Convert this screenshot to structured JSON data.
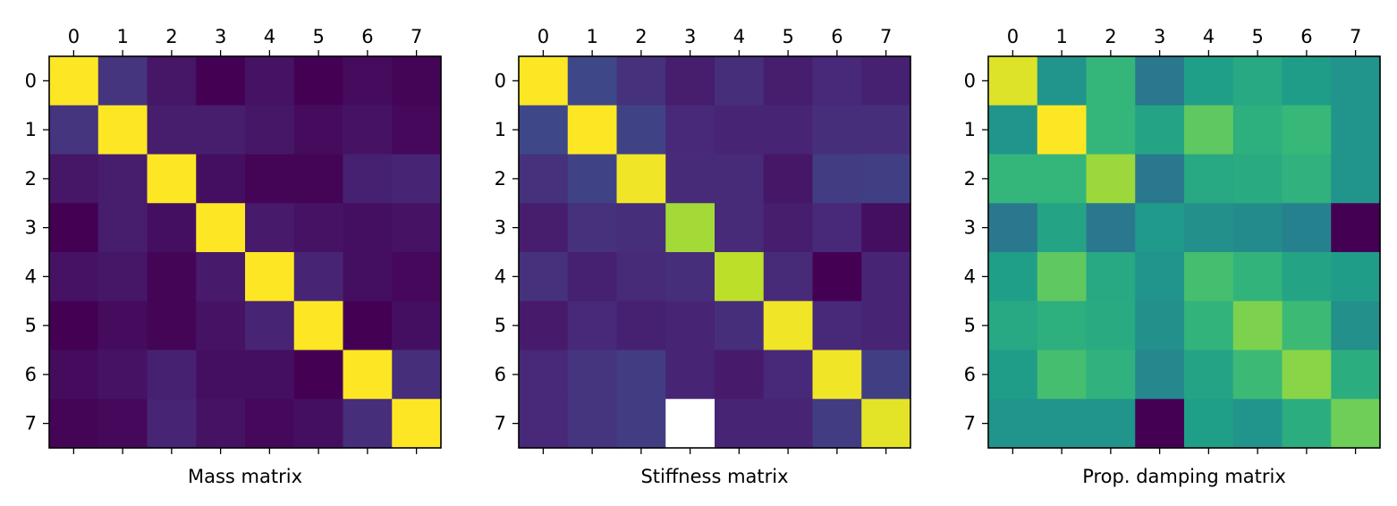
{
  "chart_data": [
    {
      "type": "heatmap",
      "title": "",
      "xlabel": "Mass matrix",
      "ylabel": "",
      "x_ticks": [
        "0",
        "1",
        "2",
        "3",
        "4",
        "5",
        "6",
        "7"
      ],
      "y_ticks": [
        "0",
        "1",
        "2",
        "3",
        "4",
        "5",
        "6",
        "7"
      ],
      "colormap": "viridis",
      "grid": false,
      "values": [
        [
          1.0,
          0.15,
          0.06,
          0.0,
          0.05,
          0.0,
          0.03,
          0.01
        ],
        [
          0.15,
          1.0,
          0.08,
          0.08,
          0.06,
          0.03,
          0.05,
          0.02
        ],
        [
          0.06,
          0.08,
          1.0,
          0.04,
          0.01,
          0.01,
          0.09,
          0.1
        ],
        [
          0.0,
          0.08,
          0.04,
          1.0,
          0.07,
          0.05,
          0.04,
          0.05
        ],
        [
          0.05,
          0.06,
          0.01,
          0.07,
          1.0,
          0.1,
          0.04,
          0.02
        ],
        [
          0.0,
          0.03,
          0.01,
          0.05,
          0.1,
          1.0,
          0.0,
          0.04
        ],
        [
          0.03,
          0.05,
          0.09,
          0.04,
          0.04,
          0.0,
          1.0,
          0.13
        ],
        [
          0.01,
          0.02,
          0.1,
          0.05,
          0.02,
          0.04,
          0.13,
          1.0
        ]
      ],
      "missing": []
    },
    {
      "type": "heatmap",
      "title": "",
      "xlabel": "Stiffness matrix",
      "ylabel": "",
      "x_ticks": [
        "0",
        "1",
        "2",
        "3",
        "4",
        "5",
        "6",
        "7"
      ],
      "y_ticks": [
        "0",
        "1",
        "2",
        "3",
        "4",
        "5",
        "6",
        "7"
      ],
      "colormap": "viridis",
      "grid": false,
      "values": [
        [
          1.0,
          0.22,
          0.14,
          0.08,
          0.13,
          0.08,
          0.11,
          0.09
        ],
        [
          0.22,
          1.0,
          0.2,
          0.11,
          0.1,
          0.1,
          0.13,
          0.13
        ],
        [
          0.14,
          0.2,
          0.98,
          0.12,
          0.12,
          0.06,
          0.18,
          0.19
        ],
        [
          0.08,
          0.14,
          0.13,
          0.86,
          0.12,
          0.08,
          0.11,
          0.04
        ],
        [
          0.14,
          0.09,
          0.12,
          0.13,
          0.9,
          0.12,
          0.0,
          0.1
        ],
        [
          0.07,
          0.11,
          0.09,
          0.1,
          0.13,
          0.98,
          0.11,
          0.1
        ],
        [
          0.11,
          0.15,
          0.18,
          0.1,
          0.07,
          0.11,
          0.98,
          0.19
        ],
        [
          0.11,
          0.15,
          0.18,
          null,
          0.1,
          0.1,
          0.18,
          0.96
        ]
      ],
      "missing": [
        [
          7,
          3
        ]
      ]
    },
    {
      "type": "heatmap",
      "title": "",
      "xlabel": "Prop. damping matrix",
      "ylabel": "",
      "x_ticks": [
        "0",
        "1",
        "2",
        "3",
        "4",
        "5",
        "6",
        "7"
      ],
      "y_ticks": [
        "0",
        "1",
        "2",
        "3",
        "4",
        "5",
        "6",
        "7"
      ],
      "colormap": "viridis",
      "grid": false,
      "values": [
        [
          0.95,
          0.52,
          0.66,
          0.4,
          0.56,
          0.6,
          0.55,
          0.52
        ],
        [
          0.52,
          1.0,
          0.66,
          0.58,
          0.75,
          0.63,
          0.67,
          0.52
        ],
        [
          0.66,
          0.66,
          0.85,
          0.4,
          0.6,
          0.61,
          0.64,
          0.52
        ],
        [
          0.4,
          0.58,
          0.4,
          0.54,
          0.5,
          0.48,
          0.44,
          0.0
        ],
        [
          0.56,
          0.75,
          0.6,
          0.52,
          0.7,
          0.65,
          0.58,
          0.55
        ],
        [
          0.6,
          0.63,
          0.61,
          0.5,
          0.65,
          0.8,
          0.68,
          0.5
        ],
        [
          0.55,
          0.7,
          0.64,
          0.47,
          0.58,
          0.68,
          0.82,
          0.62
        ],
        [
          0.52,
          0.52,
          0.52,
          0.0,
          0.56,
          0.52,
          0.62,
          0.78
        ]
      ],
      "missing": []
    }
  ]
}
